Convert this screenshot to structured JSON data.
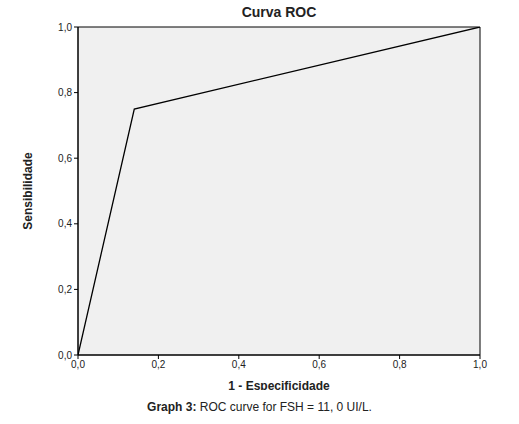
{
  "chart_data": {
    "type": "line",
    "title": "Curva ROC",
    "caption": "Graph 3: ROC curve for FSH = 11, 0 UI/L.",
    "x_label": "1 - Especificidade",
    "y_label": "Sensibilidade",
    "x": [
      0,
      0.14,
      1
    ],
    "values": [
      0,
      0.75,
      1
    ],
    "color": "#000000",
    "xlim": [
      0,
      1
    ],
    "ylim": [
      0,
      1
    ],
    "xticks": [
      {
        "value": 0,
        "label": "0,0"
      },
      {
        "value": 0.2,
        "label": "0,2"
      },
      {
        "value": 0.4,
        "label": "0,4"
      },
      {
        "value": 0.6,
        "label": "0,6"
      },
      {
        "value": 0.8,
        "label": "0,8"
      },
      {
        "value": 1,
        "label": "1,0"
      }
    ],
    "yticks": [
      {
        "value": 0,
        "label": "0,0"
      },
      {
        "value": 0.2,
        "label": "0,2"
      },
      {
        "value": 0.4,
        "label": "0,4"
      },
      {
        "value": 0.6,
        "label": "0,6"
      },
      {
        "value": 0.8,
        "label": "0,8"
      },
      {
        "value": 1,
        "label": "1,0"
      }
    ],
    "grid": false
  }
}
